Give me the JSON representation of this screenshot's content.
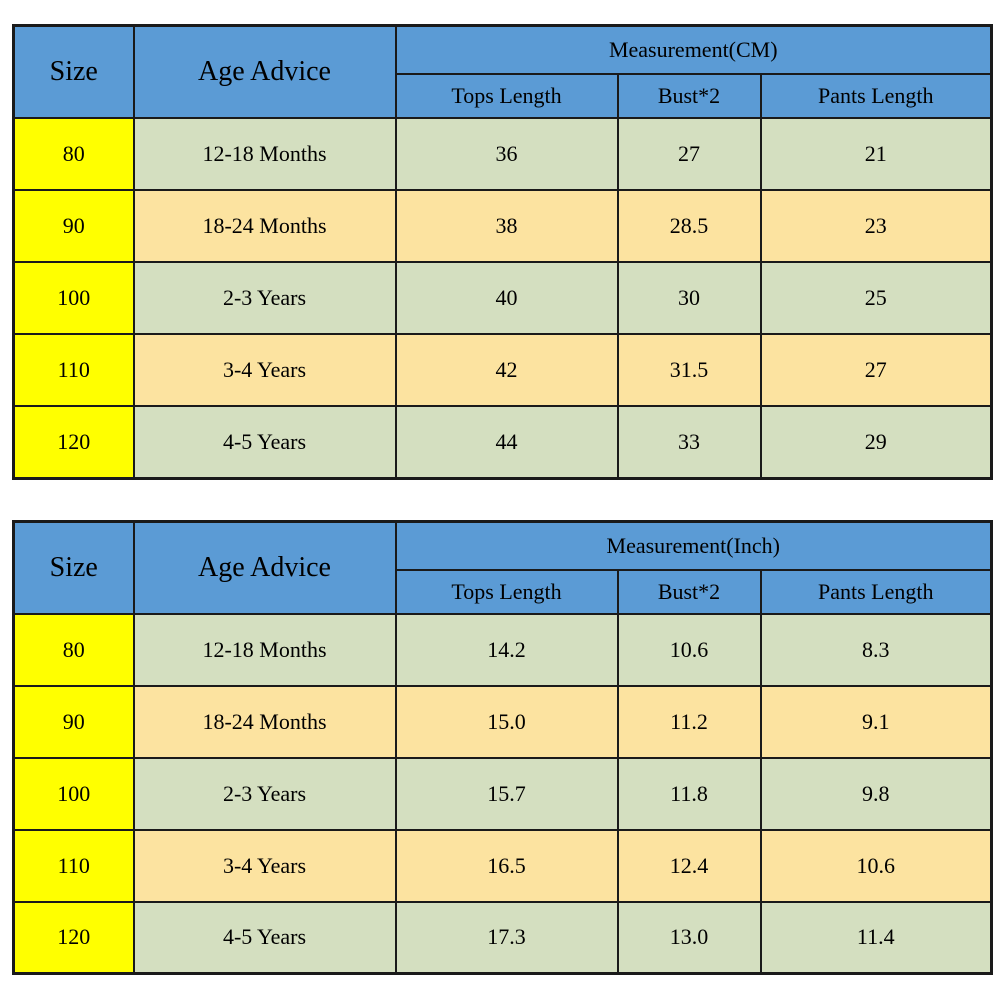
{
  "colors": {
    "header_blue": "#5b9bd5",
    "row_green": "#d4dfc0",
    "row_tan": "#fce3a0",
    "size_column_yellow": "#ffff00",
    "border": "#1a1a1a",
    "text": "#000000"
  },
  "tables": [
    {
      "size_header": "Size",
      "age_header": "Age Advice",
      "measurement_label": "Measurement(CM)",
      "sub_headers": [
        "Tops Length",
        "Bust*2",
        "Pants Length"
      ],
      "rows": [
        {
          "size": "80",
          "age": "12-18 Months",
          "values": [
            "36",
            "27",
            "21"
          ]
        },
        {
          "size": "90",
          "age": "18-24 Months",
          "values": [
            "38",
            "28.5",
            "23"
          ]
        },
        {
          "size": "100",
          "age": "2-3 Years",
          "values": [
            "40",
            "30",
            "25"
          ]
        },
        {
          "size": "110",
          "age": "3-4 Years",
          "values": [
            "42",
            "31.5",
            "27"
          ]
        },
        {
          "size": "120",
          "age": "4-5 Years",
          "values": [
            "44",
            "33",
            "29"
          ]
        }
      ]
    },
    {
      "size_header": "Size",
      "age_header": "Age Advice",
      "measurement_label": "Measurement(Inch)",
      "sub_headers": [
        "Tops Length",
        "Bust*2",
        "Pants Length"
      ],
      "rows": [
        {
          "size": "80",
          "age": "12-18 Months",
          "values": [
            "14.2",
            "10.6",
            "8.3"
          ]
        },
        {
          "size": "90",
          "age": "18-24 Months",
          "values": [
            "15.0",
            "11.2",
            "9.1"
          ]
        },
        {
          "size": "100",
          "age": "2-3 Years",
          "values": [
            "15.7",
            "11.8",
            "9.8"
          ]
        },
        {
          "size": "110",
          "age": "3-4 Years",
          "values": [
            "16.5",
            "12.4",
            "10.6"
          ]
        },
        {
          "size": "120",
          "age": "4-5 Years",
          "values": [
            "17.3",
            "13.0",
            "11.4"
          ]
        }
      ]
    }
  ]
}
